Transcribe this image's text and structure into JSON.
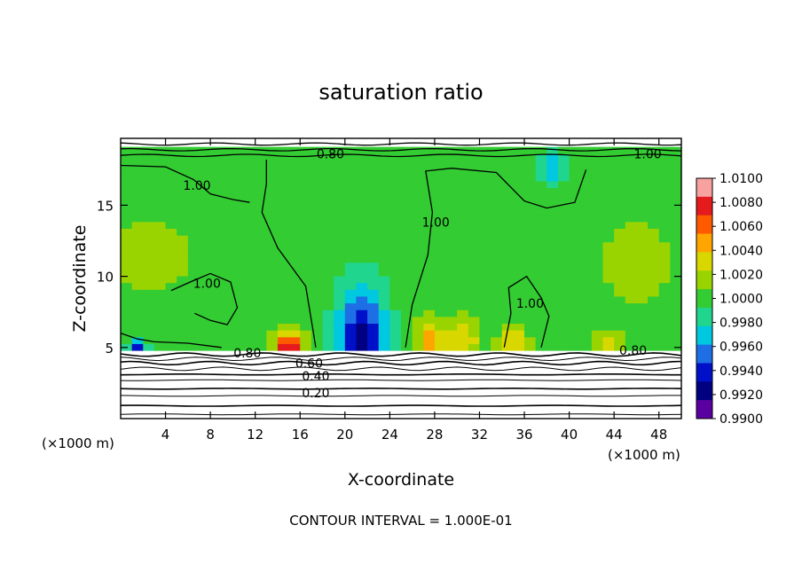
{
  "chart_data": {
    "type": "heatmap",
    "title": "saturation ratio",
    "xlabel": "X-coordinate",
    "ylabel": "Z-coordinate",
    "x_unit": "(×1000 m)",
    "y_unit": "(×1000 m)",
    "xlim": [
      0,
      50
    ],
    "ylim": [
      0,
      19.7
    ],
    "x_ticks": [
      4,
      8,
      12,
      16,
      20,
      24,
      28,
      32,
      36,
      40,
      44,
      48
    ],
    "y_ticks": [
      5,
      10,
      15
    ],
    "footer": "CONTOUR INTERVAL = 1.000E-01",
    "colorbar": {
      "levels": [
        "1.0100",
        "1.0080",
        "1.0060",
        "1.0040",
        "1.0020",
        "1.0000",
        "0.9980",
        "0.9960",
        "0.9940",
        "0.9920",
        "0.9900"
      ],
      "colors": [
        "#f7a1a1",
        "#e41a1c",
        "#ff5a00",
        "#ffa500",
        "#d8d800",
        "#9ad400",
        "#33cc33",
        "#20d58e",
        "#00c8e0",
        "#1e6ee6",
        "#0010c8",
        "#000080",
        "#5a00a0"
      ]
    },
    "contour_labels": [
      {
        "text": "0.80",
        "x": 18.7,
        "z": 18.6
      },
      {
        "text": "1.00",
        "x": 47.0,
        "z": 18.6
      },
      {
        "text": "1.00",
        "x": 6.8,
        "z": 16.4
      },
      {
        "text": "1.00",
        "x": 28.1,
        "z": 13.8
      },
      {
        "text": "1.00",
        "x": 7.7,
        "z": 9.5
      },
      {
        "text": "1.00",
        "x": 36.5,
        "z": 8.1
      },
      {
        "text": "0.80",
        "x": 11.3,
        "z": 4.6
      },
      {
        "text": "0.80",
        "x": 45.7,
        "z": 4.8
      },
      {
        "text": "0.60",
        "x": 16.8,
        "z": 3.9
      },
      {
        "text": "0.40",
        "x": 17.4,
        "z": 3.0
      },
      {
        "text": "0.20",
        "x": 17.4,
        "z": 1.8
      }
    ],
    "background_value": 1.0,
    "features": [
      {
        "kind": "min",
        "x": 21.5,
        "z": 5.0,
        "value": 0.991,
        "sx": 2.2,
        "sz": 4.0
      },
      {
        "kind": "max",
        "x": 15.0,
        "z": 5.2,
        "value": 1.009,
        "sx": 1.3,
        "sz": 1.0
      },
      {
        "kind": "max",
        "x": 27.5,
        "z": 5.5,
        "value": 1.005,
        "sx": 1.2,
        "sz": 1.5
      },
      {
        "kind": "max",
        "x": 30.5,
        "z": 5.6,
        "value": 1.004,
        "sx": 1.5,
        "sz": 1.6
      },
      {
        "kind": "max",
        "x": 35.0,
        "z": 5.4,
        "value": 1.005,
        "sx": 1.2,
        "sz": 1.0
      },
      {
        "kind": "max",
        "x": 43.5,
        "z": 5.2,
        "value": 1.004,
        "sx": 1.3,
        "sz": 0.8
      },
      {
        "kind": "min",
        "x": 38.5,
        "z": 17.8,
        "value": 0.996,
        "sx": 1.0,
        "sz": 1.3
      },
      {
        "kind": "min",
        "x": 1.5,
        "z": 5.0,
        "value": 0.994,
        "sx": 0.8,
        "sz": 0.7
      },
      {
        "kind": "max",
        "x": 2.5,
        "z": 11.5,
        "value": 1.002,
        "sx": 4.0,
        "sz": 2.5
      },
      {
        "kind": "max",
        "x": 46.0,
        "z": 11.0,
        "value": 1.002,
        "sx": 3.0,
        "sz": 3.0
      }
    ],
    "cloud_free_band_top": 4.8,
    "stratified_isolines": [
      0.3,
      0.9,
      1.6,
      2.1,
      2.7,
      3.1,
      3.5,
      3.9,
      4.2,
      4.5
    ]
  }
}
